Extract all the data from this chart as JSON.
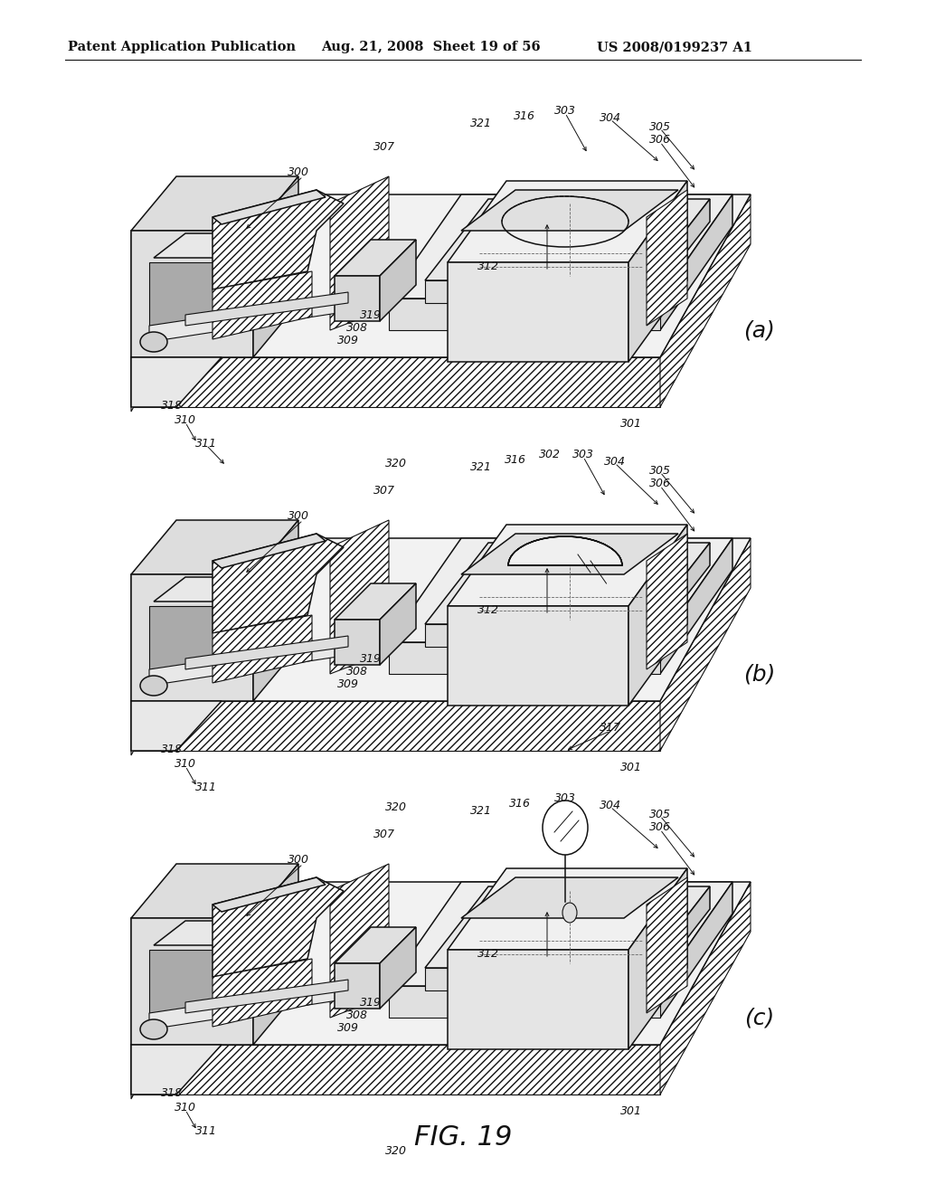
{
  "background_color": "#ffffff",
  "line_color": "#111111",
  "header_left": "Patent Application Publication",
  "header_center": "Aug. 21, 2008  Sheet 19 of 56",
  "header_right": "US 2008/0199237 A1",
  "footer": "FIG. 19",
  "panels": [
    "(a)",
    "(b)",
    "(c)"
  ],
  "ref_fontsize": 9,
  "label_fontsize": 18,
  "header_fontsize": 10.5,
  "footer_fontsize": 22
}
